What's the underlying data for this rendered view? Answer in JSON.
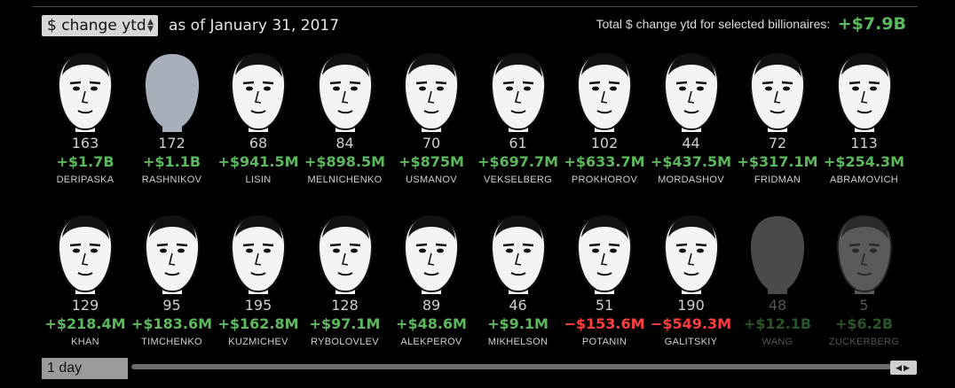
{
  "header": {
    "metric_select": "$ change ytd",
    "as_of": "as of January 31, 2017",
    "total_label": "Total $ change ytd for selected billionaires:",
    "total_value": "+$7.9B"
  },
  "colors": {
    "positive": "#5cb85c",
    "negative": "#ff3d3d",
    "face_light": "#f4f4f4",
    "face_placeholder": "#a7b0ba",
    "face_dim": "#4a4a4a"
  },
  "billionaires": [
    {
      "rank": "163",
      "change": "+$1.7B",
      "name": "DERIPASKA",
      "sign": "positive",
      "photo": "portrait"
    },
    {
      "rank": "172",
      "change": "+$1.1B",
      "name": "RASHNIKOV",
      "sign": "positive",
      "photo": "placeholder"
    },
    {
      "rank": "68",
      "change": "+$941.5M",
      "name": "LISIN",
      "sign": "positive",
      "photo": "portrait"
    },
    {
      "rank": "84",
      "change": "+$898.5M",
      "name": "MELNICHENKO",
      "sign": "positive",
      "photo": "portrait"
    },
    {
      "rank": "70",
      "change": "+$875M",
      "name": "USMANOV",
      "sign": "positive",
      "photo": "portrait"
    },
    {
      "rank": "61",
      "change": "+$697.7M",
      "name": "VEKSELBERG",
      "sign": "positive",
      "photo": "portrait"
    },
    {
      "rank": "102",
      "change": "+$633.7M",
      "name": "PROKHOROV",
      "sign": "positive",
      "photo": "portrait"
    },
    {
      "rank": "44",
      "change": "+$437.5M",
      "name": "MORDASHOV",
      "sign": "positive",
      "photo": "portrait"
    },
    {
      "rank": "72",
      "change": "+$317.1M",
      "name": "FRIDMAN",
      "sign": "positive",
      "photo": "portrait"
    },
    {
      "rank": "113",
      "change": "+$254.3M",
      "name": "ABRAMOVICH",
      "sign": "positive",
      "photo": "portrait"
    },
    {
      "rank": "129",
      "change": "+$218.4M",
      "name": "KHAN",
      "sign": "positive",
      "photo": "portrait"
    },
    {
      "rank": "95",
      "change": "+$183.6M",
      "name": "TIMCHENKO",
      "sign": "positive",
      "photo": "portrait"
    },
    {
      "rank": "195",
      "change": "+$162.8M",
      "name": "KUZMICHEV",
      "sign": "positive",
      "photo": "portrait"
    },
    {
      "rank": "128",
      "change": "+$97.1M",
      "name": "RYBOLOVLEV",
      "sign": "positive",
      "photo": "portrait"
    },
    {
      "rank": "89",
      "change": "+$48.6M",
      "name": "ALEKPEROV",
      "sign": "positive",
      "photo": "portrait"
    },
    {
      "rank": "46",
      "change": "+$9.1M",
      "name": "MIKHELSON",
      "sign": "positive",
      "photo": "portrait"
    },
    {
      "rank": "51",
      "change": "−$153.6M",
      "name": "POTANIN",
      "sign": "negative",
      "photo": "portrait"
    },
    {
      "rank": "190",
      "change": "−$549.3M",
      "name": "GALITSKIY",
      "sign": "negative",
      "photo": "portrait"
    },
    {
      "rank": "48",
      "change": "+$12.1B",
      "name": "WANG",
      "sign": "positive",
      "photo": "placeholder-dim",
      "dim": true
    },
    {
      "rank": "5",
      "change": "+$6.2B",
      "name": "ZUCKERBERG",
      "sign": "positive",
      "photo": "portrait-dim",
      "dim": true
    }
  ],
  "timeline": {
    "period_label": "1 day",
    "handle_icon": "scroll-arrows-icon"
  }
}
